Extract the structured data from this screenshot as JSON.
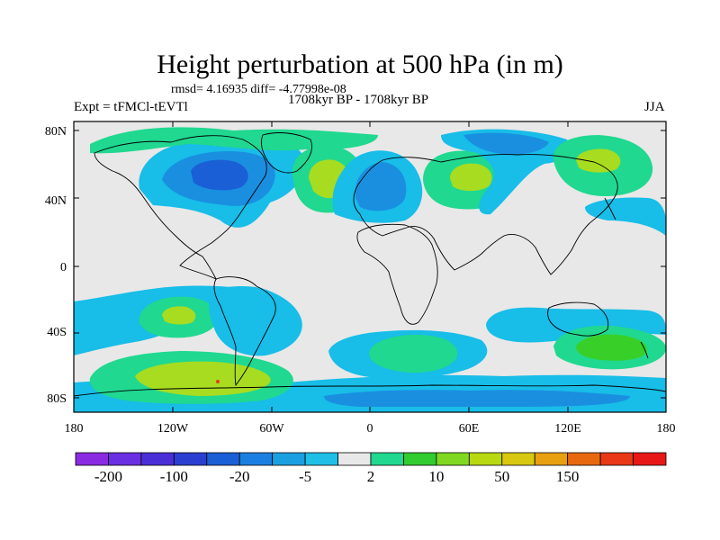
{
  "title": "Height perturbation at 500 hPa (in m)",
  "stats": "rmsd= 4.16935  diff= -4.77998e-08",
  "experiment": "Expt = tFMCl-tEVTl",
  "period": "1708kyr BP - 1708kyr BP",
  "season": "JJA",
  "lat_ticks": [
    "80N",
    "40N",
    "0",
    "40S",
    "80S"
  ],
  "lon_ticks": [
    "180",
    "120W",
    "60W",
    "0",
    "60E",
    "120E",
    "180"
  ],
  "colorbar": {
    "labels": [
      "-200",
      "-100",
      "-20",
      "-5",
      "2",
      "10",
      "50",
      "150"
    ],
    "colors": [
      "#8a2be2",
      "#6a2fe0",
      "#4a2fd8",
      "#2a3fd0",
      "#1a5fd6",
      "#1a7fe0",
      "#1a9fe0",
      "#20c0e6",
      "#e8e8e8",
      "#20d890",
      "#30cc30",
      "#80d820",
      "#b8d810",
      "#d8c810",
      "#e8a010",
      "#e86810",
      "#e83818",
      "#e81818"
    ]
  },
  "map_colors": {
    "neutral": "#e8e8e8",
    "light_blue": "#18bde8",
    "mid_blue": "#1a8fe0",
    "dark_blue": "#1a5fd6",
    "teal": "#20d890",
    "green": "#38d028",
    "yellow_green": "#a8dc20",
    "red": "#e83818"
  }
}
